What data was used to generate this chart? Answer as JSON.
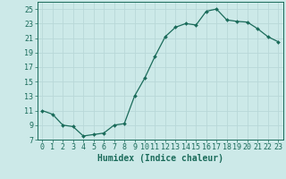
{
  "x": [
    0,
    1,
    2,
    3,
    4,
    5,
    6,
    7,
    8,
    9,
    10,
    11,
    12,
    13,
    14,
    15,
    16,
    17,
    18,
    19,
    20,
    21,
    22,
    23
  ],
  "y": [
    11,
    10.5,
    9,
    8.8,
    7.5,
    7.7,
    7.9,
    9,
    9.2,
    13,
    15.5,
    18.5,
    21.2,
    22.5,
    23,
    22.8,
    24.7,
    25,
    23.5,
    23.3,
    23.2,
    22.3,
    21.2,
    20.5
  ],
  "line_color": "#1a6b5a",
  "marker": "D",
  "marker_size": 2.0,
  "bg_color": "#cce9e8",
  "grid_color": "#b8d8d8",
  "xlabel": "Humidex (Indice chaleur)",
  "xlim": [
    -0.5,
    23.5
  ],
  "ylim": [
    7,
    26
  ],
  "yticks": [
    7,
    9,
    11,
    13,
    15,
    17,
    19,
    21,
    23,
    25
  ],
  "xtick_labels": [
    "0",
    "1",
    "2",
    "3",
    "4",
    "5",
    "6",
    "7",
    "8",
    "9",
    "10",
    "11",
    "12",
    "13",
    "14",
    "15",
    "16",
    "17",
    "18",
    "19",
    "20",
    "21",
    "22",
    "23"
  ],
  "font_color": "#1a6b5a",
  "xlabel_fontsize": 7,
  "tick_fontsize": 6
}
